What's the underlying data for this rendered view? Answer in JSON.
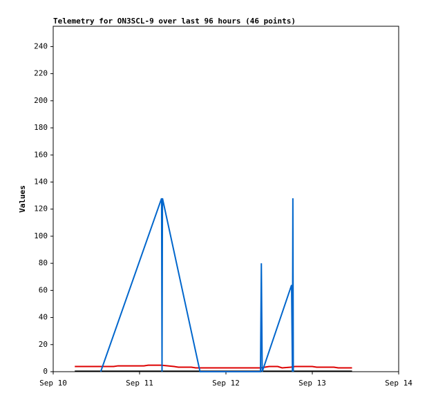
{
  "chart_data": {
    "type": "line",
    "title": "Telemetry for ON3SCL-9 over last 96 hours (46 points)",
    "y_label": "Values",
    "xlim": [
      10,
      14
    ],
    "xticks": [
      {
        "value": 10,
        "label": "Sep 10"
      },
      {
        "value": 11,
        "label": "Sep 11"
      },
      {
        "value": 12,
        "label": "Sep 12"
      },
      {
        "value": 13,
        "label": "Sep 13"
      },
      {
        "value": 14,
        "label": "Sep 14"
      }
    ],
    "ylim": [
      0,
      255
    ],
    "yticks": [
      0,
      20,
      40,
      60,
      80,
      100,
      120,
      140,
      160,
      180,
      200,
      220,
      240
    ],
    "series": [
      {
        "color": "#000000",
        "x": [
          10.25,
          13.46
        ],
        "values": [
          0.3,
          0.3
        ]
      },
      {
        "color": "#dd0000",
        "x": [
          10.25,
          10.7,
          10.75,
          11.05,
          11.1,
          11.25,
          11.4,
          11.45,
          11.6,
          11.65,
          12.4,
          12.45,
          12.5,
          12.6,
          12.65,
          12.75,
          12.8,
          13.0,
          13.05,
          13.25,
          13.3,
          13.46
        ],
        "values": [
          3.8,
          3.8,
          4.3,
          4.3,
          4.8,
          4.8,
          3.8,
          3.3,
          3.3,
          2.8,
          2.8,
          3.3,
          3.8,
          3.8,
          2.8,
          3.3,
          3.8,
          3.8,
          3.3,
          3.3,
          2.8,
          2.8
        ]
      },
      {
        "color": "#0066cc",
        "x": [
          10.55,
          11.255,
          11.26,
          11.265,
          11.7,
          12.4,
          12.41,
          12.42,
          12.76,
          12.77,
          12.775,
          12.78
        ],
        "values": [
          0,
          128,
          0,
          128,
          0,
          0,
          80,
          0,
          64,
          0,
          128,
          0
        ]
      }
    ]
  }
}
